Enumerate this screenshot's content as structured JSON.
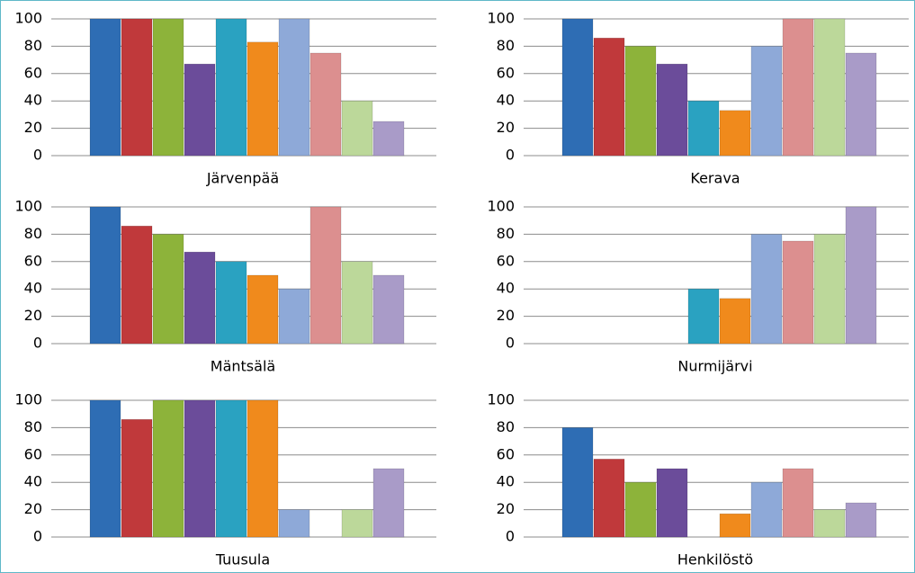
{
  "chart_data": [
    {
      "type": "bar",
      "xlabel": "Järvenpää",
      "categories": [
        null,
        null,
        null,
        null,
        null,
        null,
        null,
        null,
        null,
        null
      ],
      "values": [
        100,
        100,
        100,
        67,
        100,
        83,
        100,
        75,
        40,
        25
      ],
      "colors": [
        "#2e6db4",
        "#c0393b",
        "#8db33a",
        "#6b4c9a",
        "#2aa2c1",
        "#f08a1c",
        "#8ea9d8",
        "#dc8f8f",
        "#bcd89a",
        "#a99bc8"
      ],
      "ylim": [
        0,
        100
      ],
      "yticks": [
        0,
        20,
        40,
        60,
        80,
        100
      ],
      "grid": true
    },
    {
      "type": "bar",
      "xlabel": "Kerava",
      "categories": [
        null,
        null,
        null,
        null,
        null,
        null,
        null,
        null,
        null,
        null
      ],
      "values": [
        100,
        86,
        80,
        67,
        40,
        33,
        80,
        100,
        100,
        75
      ],
      "colors": [
        "#2e6db4",
        "#c0393b",
        "#8db33a",
        "#6b4c9a",
        "#2aa2c1",
        "#f08a1c",
        "#8ea9d8",
        "#dc8f8f",
        "#bcd89a",
        "#a99bc8"
      ],
      "ylim": [
        0,
        100
      ],
      "yticks": [
        0,
        20,
        40,
        60,
        80,
        100
      ],
      "grid": true
    },
    {
      "type": "bar",
      "xlabel": "Mäntsälä",
      "categories": [
        null,
        null,
        null,
        null,
        null,
        null,
        null,
        null,
        null,
        null
      ],
      "values": [
        100,
        86,
        80,
        67,
        60,
        50,
        40,
        100,
        60,
        50
      ],
      "colors": [
        "#2e6db4",
        "#c0393b",
        "#8db33a",
        "#6b4c9a",
        "#2aa2c1",
        "#f08a1c",
        "#8ea9d8",
        "#dc8f8f",
        "#bcd89a",
        "#a99bc8"
      ],
      "ylim": [
        0,
        100
      ],
      "yticks": [
        0,
        20,
        40,
        60,
        80,
        100
      ],
      "grid": true
    },
    {
      "type": "bar",
      "xlabel": "Nurmijärvi",
      "categories": [
        null,
        null,
        null,
        null,
        null,
        null,
        null,
        null,
        null,
        null
      ],
      "values": [
        0,
        0,
        0,
        0,
        40,
        33,
        80,
        75,
        80,
        100
      ],
      "colors": [
        "#2e6db4",
        "#c0393b",
        "#8db33a",
        "#6b4c9a",
        "#2aa2c1",
        "#f08a1c",
        "#8ea9d8",
        "#dc8f8f",
        "#bcd89a",
        "#a99bc8"
      ],
      "ylim": [
        0,
        100
      ],
      "yticks": [
        0,
        20,
        40,
        60,
        80,
        100
      ],
      "grid": true
    },
    {
      "type": "bar",
      "xlabel": "Tuusula",
      "categories": [
        null,
        null,
        null,
        null,
        null,
        null,
        null,
        null,
        null,
        null
      ],
      "values": [
        100,
        86,
        100,
        100,
        100,
        100,
        20,
        0,
        20,
        50
      ],
      "colors": [
        "#2e6db4",
        "#c0393b",
        "#8db33a",
        "#6b4c9a",
        "#2aa2c1",
        "#f08a1c",
        "#8ea9d8",
        "#dc8f8f",
        "#bcd89a",
        "#a99bc8"
      ],
      "ylim": [
        0,
        100
      ],
      "yticks": [
        0,
        20,
        40,
        60,
        80,
        100
      ],
      "grid": true
    },
    {
      "type": "bar",
      "xlabel": "Henkilöstö",
      "categories": [
        null,
        null,
        null,
        null,
        null,
        null,
        null,
        null,
        null,
        null
      ],
      "values": [
        80,
        57,
        40,
        50,
        0,
        17,
        40,
        50,
        20,
        25
      ],
      "colors": [
        "#2e6db4",
        "#c0393b",
        "#8db33a",
        "#6b4c9a",
        "#2aa2c1",
        "#f08a1c",
        "#8ea9d8",
        "#dc8f8f",
        "#bcd89a",
        "#a99bc8"
      ],
      "ylim": [
        0,
        100
      ],
      "yticks": [
        0,
        20,
        40,
        60,
        80,
        100
      ],
      "grid": true
    }
  ]
}
